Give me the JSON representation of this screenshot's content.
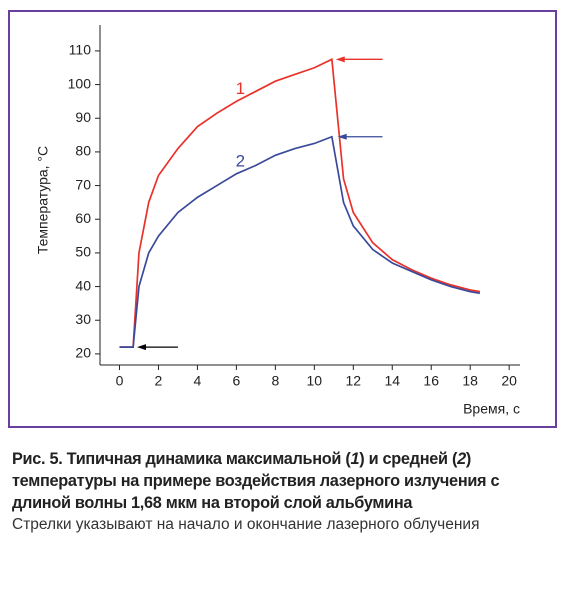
{
  "chart_data": {
    "type": "line",
    "x": [
      0,
      0.7,
      1,
      1.5,
      2,
      3,
      4,
      5,
      6,
      7,
      8,
      9,
      10,
      10.9,
      11.5,
      12,
      13,
      14,
      15,
      16,
      17,
      18,
      18.5
    ],
    "series": [
      {
        "name": "1",
        "color": "#e8322a",
        "values": [
          22,
          22,
          50,
          65,
          73,
          81,
          87.5,
          91.5,
          95,
          98,
          101,
          103,
          105,
          107.5,
          72,
          62,
          53,
          48,
          45,
          42.5,
          40.5,
          39,
          38.5
        ]
      },
      {
        "name": "2",
        "color": "#3a4a9a",
        "values": [
          22,
          22,
          40,
          50,
          55,
          62,
          66.5,
          70,
          73.5,
          76,
          79,
          81,
          82.5,
          84.5,
          65,
          58,
          51,
          47,
          44.5,
          42,
          40,
          38.5,
          38
        ]
      }
    ],
    "arrows": [
      {
        "x": [
          13.5,
          11.1
        ],
        "y": 107.5,
        "color": "#e8322a"
      },
      {
        "x": [
          13.5,
          11.2
        ],
        "y": 84.5,
        "color": "#3a4a9a"
      },
      {
        "x": [
          3,
          0.9
        ],
        "y": 22,
        "color": "#000000"
      }
    ],
    "xlabel": "Время, с",
    "ylabel": "Температура, °C",
    "xlim": [
      -1,
      20.3
    ],
    "ylim": [
      16.7,
      117.7
    ],
    "xticks": [
      0,
      2,
      4,
      6,
      8,
      10,
      12,
      14,
      16,
      18,
      20
    ],
    "yticks": [
      20,
      30,
      40,
      50,
      60,
      70,
      80,
      90,
      100,
      110
    ]
  },
  "caption": {
    "title_parts": [
      "Рис. 5. Типичная динамика максимальной (",
      "1",
      ") и средней (",
      "2",
      ") температуры на примере воздействия лазерного излучения с длиной волны 1,68 мкм на второй слой альбумина"
    ],
    "note": "Стрелки указывают на начало и окончание лазерного облучения"
  }
}
